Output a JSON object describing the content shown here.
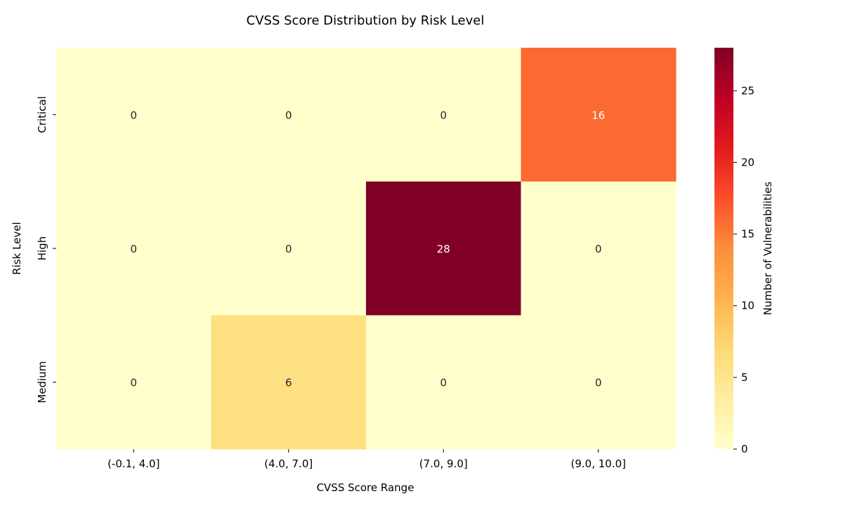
{
  "chart_data": {
    "type": "heatmap",
    "title": "CVSS Score Distribution by Risk Level",
    "xlabel": "CVSS Score Range",
    "ylabel": "Risk Level",
    "x_categories": [
      "(-0.1, 4.0]",
      "(4.0, 7.0]",
      "(7.0, 9.0]",
      "(9.0, 10.0]"
    ],
    "y_categories": [
      "Critical",
      "High",
      "Medium"
    ],
    "values": [
      [
        0,
        0,
        0,
        16
      ],
      [
        0,
        0,
        28,
        0
      ],
      [
        0,
        6,
        0,
        0
      ]
    ],
    "colorbar": {
      "label": "Number of Vulnerabilities",
      "min": 0,
      "max": 28,
      "ticks": [
        0,
        5,
        10,
        15,
        20,
        25
      ],
      "colormap": "YlOrRd",
      "stops": [
        "#ffffcc",
        "#ffeda0",
        "#fed976",
        "#feb24c",
        "#fd8d3c",
        "#fc4e2a",
        "#e31a1c",
        "#bd0026",
        "#800026"
      ]
    }
  }
}
